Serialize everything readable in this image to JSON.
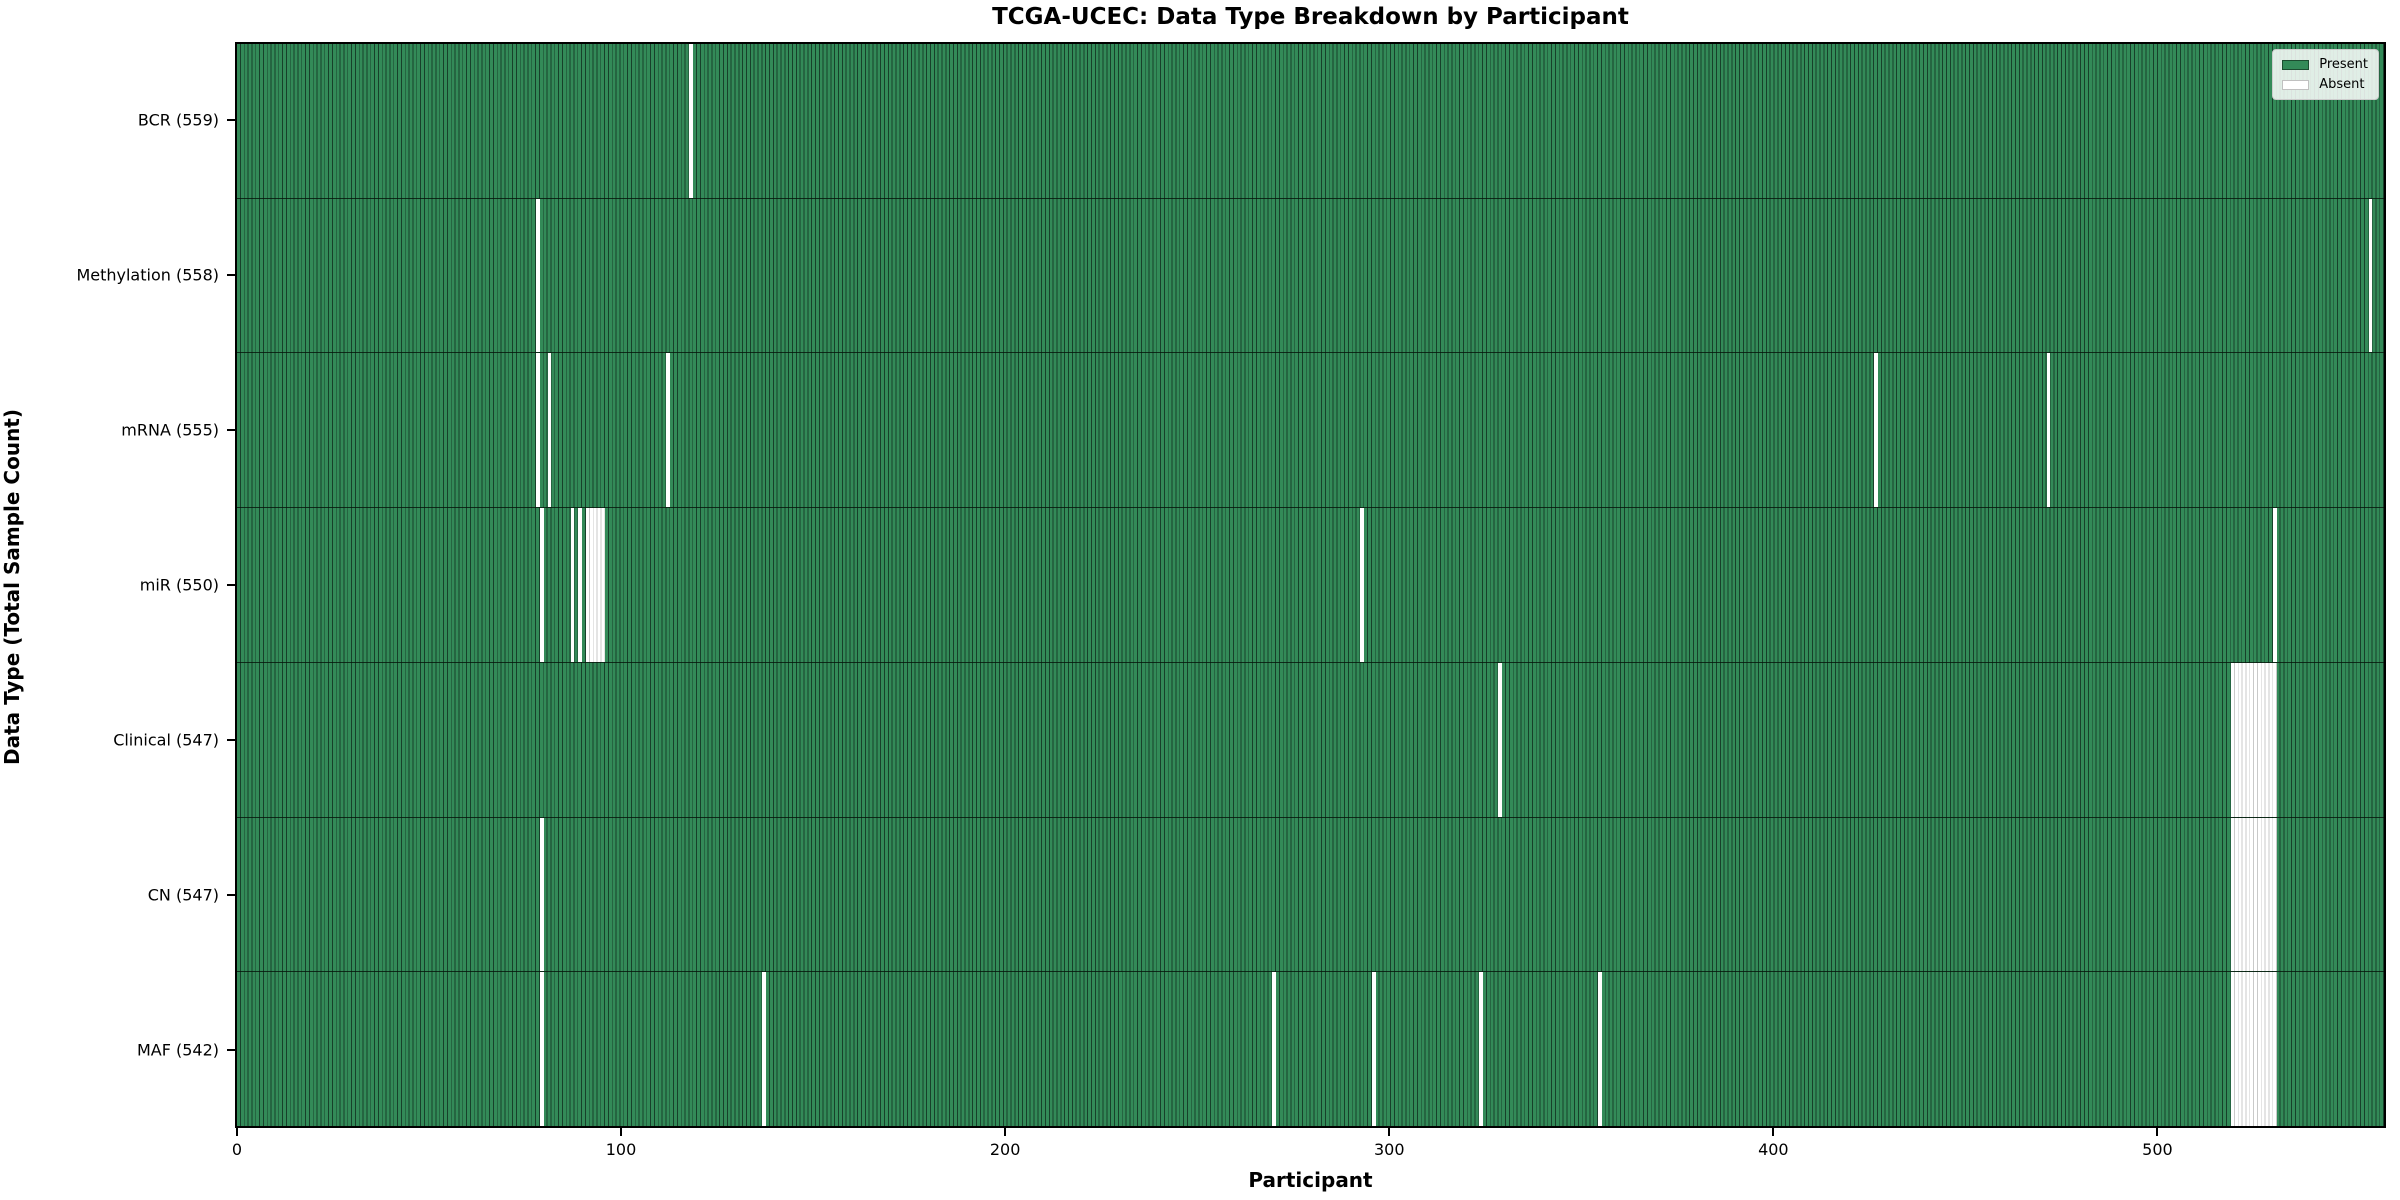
{
  "chart_data": {
    "type": "heatmap",
    "title": "TCGA-UCEC: Data Type Breakdown by Participant",
    "xlabel": "Participant",
    "ylabel": "Data Type (Total Sample Count)",
    "x_ticks": [
      0,
      100,
      200,
      300,
      400,
      500
    ],
    "x_range": [
      0,
      560
    ],
    "total_participants": 560,
    "grid": false,
    "legend_position": "upper right",
    "legend": {
      "present_label": "Present",
      "absent_label": "Absent"
    },
    "colors": {
      "present": "#338a58",
      "present_edge": "#17402a",
      "absent": "#ffffff",
      "absent_edge": "#c9c9c9",
      "spine": "#000000",
      "background": "#ffffff"
    },
    "rows": [
      {
        "label": "BCR (559)",
        "data_type": "BCR",
        "present_count": 559,
        "absent_participants": [
          118
        ]
      },
      {
        "label": "Methylation (558)",
        "data_type": "Methylation",
        "present_count": 558,
        "absent_participants": [
          78,
          556
        ]
      },
      {
        "label": "mRNA (555)",
        "data_type": "mRNA",
        "present_count": 555,
        "absent_participants": [
          78,
          81,
          112,
          427,
          472
        ]
      },
      {
        "label": "miR (550)",
        "data_type": "miR",
        "present_count": 550,
        "absent_participants": [
          79,
          87,
          89,
          91,
          92,
          93,
          94,
          95,
          293,
          531
        ]
      },
      {
        "label": "Clinical (547)",
        "data_type": "Clinical",
        "present_count": 547,
        "absent_participants": [
          329,
          520,
          521,
          522,
          523,
          524,
          525,
          526,
          527,
          528,
          529,
          530,
          531
        ]
      },
      {
        "label": "CN (547)",
        "data_type": "CN",
        "present_count": 547,
        "absent_participants": [
          79,
          520,
          521,
          522,
          523,
          524,
          525,
          526,
          527,
          528,
          529,
          530,
          531
        ]
      },
      {
        "label": "MAF (542)",
        "data_type": "MAF",
        "present_count": 542,
        "absent_participants": [
          79,
          137,
          270,
          296,
          324,
          355,
          520,
          521,
          522,
          523,
          524,
          525,
          526,
          527,
          528,
          529,
          530,
          531
        ]
      }
    ]
  }
}
